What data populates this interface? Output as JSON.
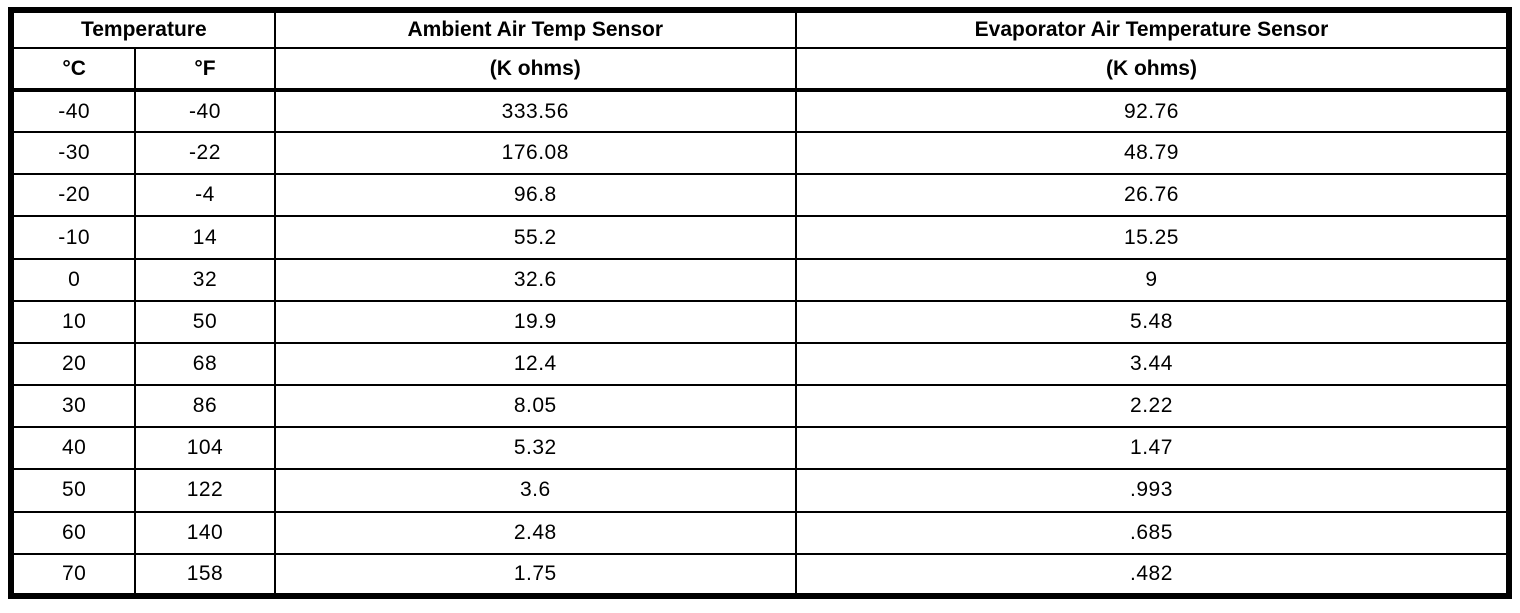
{
  "table": {
    "group_header": "Temperature",
    "columns": {
      "ambient_title": "Ambient Air Temp Sensor",
      "evaporator_title": "Evaporator Air Temperature Sensor",
      "celsius_label": "°C",
      "fahrenheit_label": "°F",
      "ambient_unit": "(K ohms)",
      "evaporator_unit": "(K ohms)"
    },
    "rows": [
      {
        "c": "-40",
        "f": "-40",
        "ambient": "333.56",
        "evaporator": "92.76"
      },
      {
        "c": "-30",
        "f": "-22",
        "ambient": "176.08",
        "evaporator": "48.79"
      },
      {
        "c": "-20",
        "f": "-4",
        "ambient": "96.8",
        "evaporator": "26.76"
      },
      {
        "c": "-10",
        "f": "14",
        "ambient": "55.2",
        "evaporator": "15.25"
      },
      {
        "c": "0",
        "f": "32",
        "ambient": "32.6",
        "evaporator": "9"
      },
      {
        "c": "10",
        "f": "50",
        "ambient": "19.9",
        "evaporator": "5.48"
      },
      {
        "c": "20",
        "f": "68",
        "ambient": "12.4",
        "evaporator": "3.44"
      },
      {
        "c": "30",
        "f": "86",
        "ambient": "8.05",
        "evaporator": "2.22"
      },
      {
        "c": "40",
        "f": "104",
        "ambient": "5.32",
        "evaporator": "1.47"
      },
      {
        "c": "50",
        "f": "122",
        "ambient": "3.6",
        "evaporator": ".993"
      },
      {
        "c": "60",
        "f": "140",
        "ambient": "2.48",
        "evaporator": ".685"
      },
      {
        "c": "70",
        "f": "158",
        "ambient": "1.75",
        "evaporator": ".482"
      }
    ],
    "colors": {
      "border": "#000000",
      "background": "#ffffff",
      "text": "#000000"
    }
  }
}
